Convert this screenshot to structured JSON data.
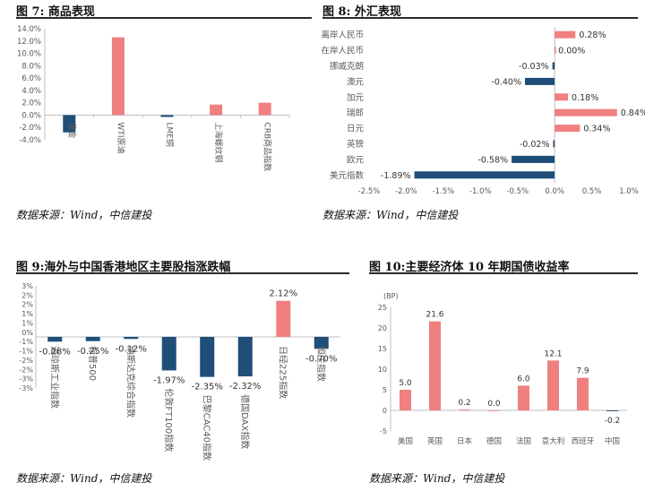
{
  "colors": {
    "negative": "#1f4e79",
    "positive": "#f08080",
    "axis": "#bfbfbf",
    "text": "#595959"
  },
  "chart_data": [
    {
      "id": "fig7",
      "title": "图 7: 商品表现",
      "source": "数据来源：Wind，中信建投",
      "type": "bar",
      "orientation": "vertical",
      "categories": [
        "黄金",
        "WTI原油",
        "LME铜",
        "上海螺纹钢",
        "CRB商品指数"
      ],
      "values": [
        -2.8,
        12.6,
        -0.3,
        1.7,
        2.0
      ],
      "yticks": [
        "14.0%",
        "12.0%",
        "10.0%",
        "8.0%",
        "6.0%",
        "4.0%",
        "2.0%",
        "0.0%",
        "-2.0%",
        "-4.0%"
      ],
      "ylim": [
        -4,
        14
      ],
      "data_labels": false
    },
    {
      "id": "fig8",
      "title": "图 8: 外汇表现",
      "source": "数据来源：Wind，中信建投",
      "type": "bar",
      "orientation": "horizontal",
      "categories": [
        "离岸人民币",
        "在岸人民币",
        "挪威克朗",
        "澳元",
        "加元",
        "瑞郎",
        "日元",
        "英镑",
        "欧元",
        "美元指数"
      ],
      "values": [
        0.28,
        0.0,
        -0.03,
        -0.4,
        0.18,
        0.84,
        0.34,
        -0.02,
        -0.58,
        -1.89
      ],
      "labels": [
        "0.28%",
        "0.00%",
        "-0.03%",
        "-0.40%",
        "0.18%",
        "0.84%",
        "0.34%",
        "-0.02%",
        "-0.58%",
        "-1.89%"
      ],
      "xticks": [
        "-2.5%",
        "-2.0%",
        "-1.5%",
        "-1.0%",
        "-0.5%",
        "0.0%",
        "0.5%",
        "1.0%"
      ],
      "xlim": [
        -2.5,
        1.0
      ]
    },
    {
      "id": "fig9",
      "title": "图 9:海外与中国香港地区主要股指涨跌幅",
      "source": "数据来源：Wind，中信建投",
      "type": "bar",
      "orientation": "vertical",
      "categories": [
        "道琼斯工业指数",
        "标普500",
        "纳斯达克综合指数",
        "伦敦FT100指数",
        "巴黎CAC40指数",
        "德国DAX指数",
        "日经225指数",
        "恒生指数"
      ],
      "values": [
        -0.28,
        -0.25,
        -0.12,
        -1.97,
        -2.35,
        -2.32,
        2.12,
        -0.7
      ],
      "labels": [
        "-0.28%",
        "-0.25%",
        "-0.12%",
        "-1.97%",
        "-2.35%",
        "-2.32%",
        "2.12%",
        "-0.70%"
      ],
      "yticks": [
        "3%",
        "2%",
        "2%",
        "1%",
        "1%",
        "0%",
        "-1%",
        "-1%",
        "-2%",
        "-2%",
        "-3%",
        "-3%"
      ],
      "ylim": [
        -3,
        3
      ]
    },
    {
      "id": "fig10",
      "title": "图 10:主要经济体 10 年期国债收益率",
      "source": "数据来源：Wind，中信建投",
      "type": "bar",
      "orientation": "vertical",
      "unit": "(BP)",
      "categories": [
        "美国",
        "英国",
        "日本",
        "德国",
        "法国",
        "意大利",
        "西班牙",
        "中国"
      ],
      "values": [
        5.0,
        21.6,
        0.2,
        0.0,
        6.0,
        12.1,
        7.9,
        -0.2
      ],
      "labels": [
        "5.0",
        "21.6",
        "0.2",
        "0.0",
        "6.0",
        "12.1",
        "7.9",
        "-0.2"
      ],
      "yticks": [
        "25",
        "20",
        "15",
        "10",
        "5",
        "0",
        "-5"
      ],
      "ylim": [
        -5,
        25
      ]
    }
  ]
}
